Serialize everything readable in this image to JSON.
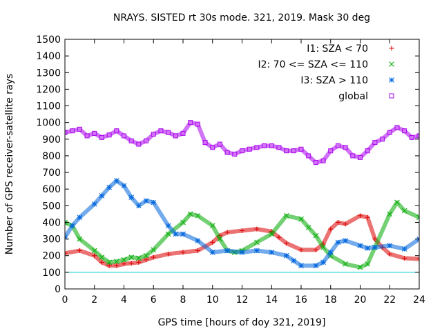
{
  "chart_data": {
    "type": "scatter",
    "title": "NRAYS. SISTED rt 30s mode. 321, 2019. Mask 30 deg",
    "xlabel": "GPS time [hours of doy 321, 2019]",
    "ylabel": "Number of GPS receiver-satellite rays",
    "xlim": [
      0,
      24
    ],
    "ylim": [
      0,
      1500
    ],
    "xticks": [
      0,
      2,
      4,
      6,
      8,
      10,
      12,
      14,
      16,
      18,
      20,
      22,
      24
    ],
    "yticks": [
      0,
      100,
      200,
      300,
      400,
      500,
      600,
      700,
      800,
      900,
      1000,
      1100,
      1200,
      1300,
      1400,
      1500
    ],
    "grid": false,
    "legend_position": "top-right",
    "reference_line": {
      "y": 100,
      "color": "#00cccc"
    },
    "series": [
      {
        "name": "I1: SZA < 70",
        "marker": "+",
        "color": "#dd0000",
        "x": [
          0,
          1,
          2,
          2.5,
          3,
          3.5,
          4,
          4.5,
          5,
          5.5,
          6,
          7,
          8,
          9,
          10,
          10.5,
          11,
          12,
          13,
          14,
          14.5,
          15,
          16,
          17,
          17.5,
          18,
          18.5,
          19,
          20,
          20.5,
          21,
          21.5,
          22,
          23,
          24
        ],
        "values": [
          215,
          230,
          200,
          160,
          140,
          140,
          150,
          155,
          160,
          175,
          190,
          210,
          220,
          230,
          280,
          320,
          340,
          350,
          360,
          345,
          310,
          275,
          235,
          235,
          270,
          360,
          400,
          390,
          440,
          430,
          300,
          250,
          210,
          185,
          180
        ]
      },
      {
        "name": "I2: 70 <= SZA <= 110",
        "marker": "x",
        "color": "#00aa00",
        "x": [
          0,
          0.5,
          1,
          2,
          2.5,
          3,
          3.5,
          4,
          4.5,
          5,
          5.5,
          6,
          7,
          8,
          8.5,
          9,
          10,
          10.5,
          11,
          11.5,
          12,
          13,
          14,
          15,
          16,
          16.5,
          17,
          17.5,
          18,
          19,
          20,
          20.5,
          21,
          22,
          22.5,
          23,
          24
        ],
        "values": [
          400,
          380,
          300,
          230,
          190,
          160,
          165,
          175,
          190,
          185,
          200,
          235,
          330,
          400,
          450,
          440,
          380,
          300,
          230,
          220,
          230,
          280,
          330,
          440,
          420,
          370,
          320,
          250,
          200,
          150,
          130,
          150,
          250,
          450,
          520,
          470,
          430
        ]
      },
      {
        "name": "I3: SZA > 110",
        "marker": "*",
        "color": "#0066dd",
        "x": [
          0,
          0.5,
          1,
          2,
          2.5,
          3,
          3.5,
          4,
          4.5,
          5,
          5.5,
          6,
          7,
          7.5,
          8,
          9,
          10,
          11,
          12,
          13,
          14,
          15,
          15.5,
          16,
          17,
          17.5,
          18,
          18.5,
          19,
          20,
          20.5,
          21,
          22,
          23,
          24
        ],
        "values": [
          310,
          380,
          430,
          510,
          560,
          610,
          650,
          620,
          550,
          500,
          530,
          520,
          380,
          330,
          330,
          290,
          220,
          230,
          220,
          230,
          220,
          200,
          170,
          140,
          140,
          160,
          220,
          280,
          290,
          260,
          245,
          250,
          260,
          240,
          300
        ]
      },
      {
        "name": "global",
        "marker": "square",
        "color": "#aa00ee",
        "x": [
          0,
          0.5,
          1,
          1.5,
          2,
          2.5,
          3,
          3.5,
          4,
          4.5,
          5,
          5.5,
          6,
          6.5,
          7,
          7.5,
          8,
          8.5,
          9,
          9.5,
          10,
          10.5,
          11,
          11.5,
          12,
          12.5,
          13,
          13.5,
          14,
          14.5,
          15,
          15.5,
          16,
          16.5,
          17,
          17.5,
          18,
          18.5,
          19,
          19.5,
          20,
          20.5,
          21,
          21.5,
          22,
          22.5,
          23,
          23.5,
          24
        ],
        "values": [
          940,
          950,
          960,
          920,
          935,
          910,
          925,
          950,
          920,
          890,
          870,
          890,
          930,
          950,
          940,
          920,
          935,
          1000,
          990,
          880,
          850,
          870,
          820,
          810,
          830,
          840,
          850,
          860,
          860,
          850,
          830,
          830,
          840,
          800,
          760,
          770,
          830,
          860,
          850,
          800,
          790,
          830,
          880,
          900,
          940,
          970,
          950,
          910,
          920
        ]
      }
    ]
  }
}
